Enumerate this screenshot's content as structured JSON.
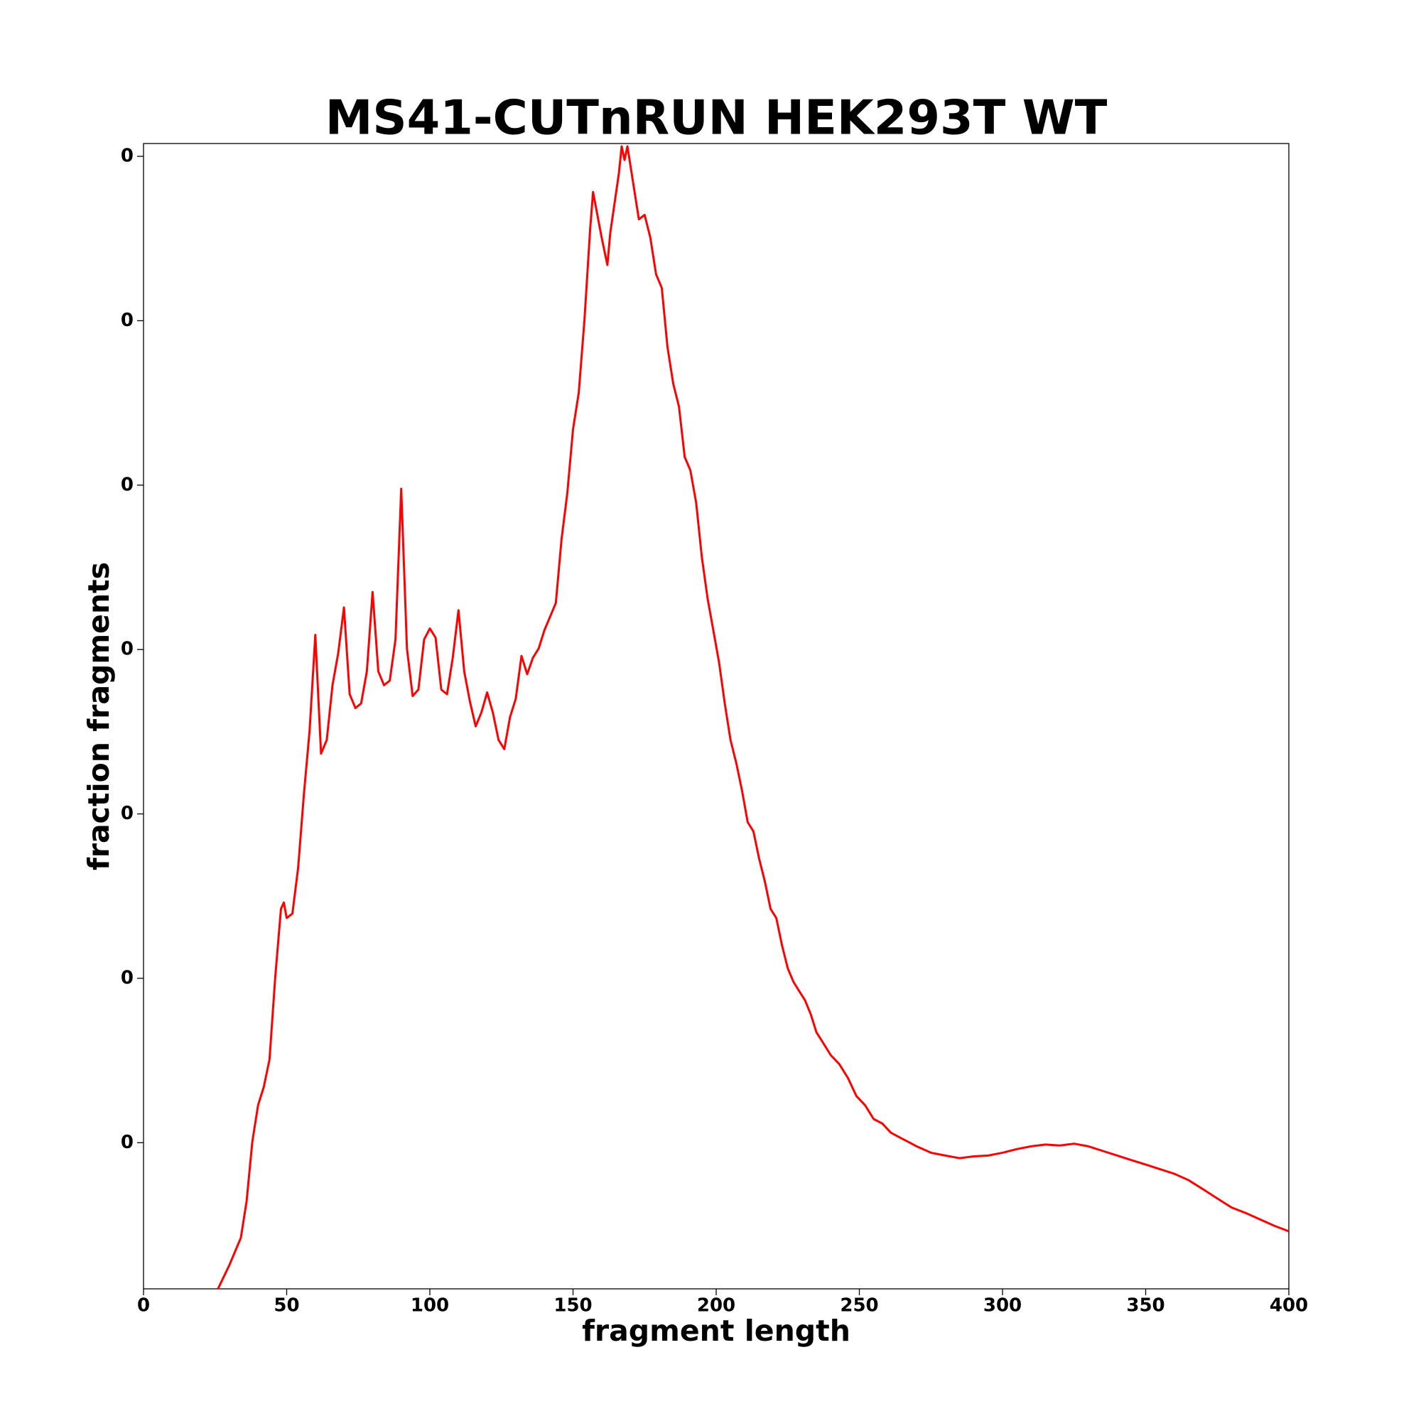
{
  "chart_data": {
    "type": "line",
    "title": "MS41-CUTnRUN HEK293T WT",
    "xlabel": "fragment length",
    "ylabel": "fraction fragments",
    "color": "#ff0000",
    "x": [
      26,
      30,
      34,
      36,
      38,
      40,
      42,
      44,
      46,
      48,
      49,
      50,
      52,
      54,
      56,
      58,
      60,
      62,
      64,
      66,
      68,
      70,
      72,
      74,
      76,
      78,
      80,
      82,
      84,
      86,
      88,
      90,
      92,
      94,
      96,
      98,
      100,
      102,
      104,
      106,
      108,
      110,
      112,
      114,
      116,
      118,
      120,
      122,
      124,
      126,
      128,
      130,
      132,
      134,
      136,
      138,
      140,
      142,
      144,
      146,
      148,
      150,
      152,
      154,
      156,
      157,
      160,
      162,
      163,
      166,
      167,
      168,
      169,
      171,
      173,
      175,
      177,
      179,
      181,
      183,
      185,
      187,
      189,
      191,
      193,
      195,
      197,
      199,
      201,
      203,
      205,
      207,
      209,
      211,
      213,
      215,
      217,
      219,
      221,
      223,
      225,
      227,
      229,
      231,
      233,
      235,
      237,
      240,
      243,
      246,
      249,
      252,
      255,
      258,
      261,
      264,
      267,
      270,
      275,
      280,
      285,
      290,
      295,
      300,
      305,
      310,
      315,
      320,
      325,
      330,
      335,
      340,
      345,
      350,
      355,
      360,
      365,
      370,
      375,
      380,
      385,
      390,
      395,
      400
    ],
    "values": [
      0.000111,
      0.000256,
      0.000422,
      0.000644,
      0.001006,
      0.001228,
      0.001339,
      0.001506,
      0.002006,
      0.002422,
      0.002461,
      0.002367,
      0.002394,
      0.002672,
      0.003117,
      0.003506,
      0.004089,
      0.003367,
      0.00345,
      0.003783,
      0.003978,
      0.004256,
      0.003728,
      0.003644,
      0.003672,
      0.003867,
      0.00435,
      0.003867,
      0.003783,
      0.003811,
      0.004061,
      0.004978,
      0.004006,
      0.003717,
      0.003756,
      0.004061,
      0.004128,
      0.004072,
      0.003756,
      0.003728,
      0.00395,
      0.004239,
      0.003867,
      0.003683,
      0.003533,
      0.003617,
      0.003739,
      0.003617,
      0.00345,
      0.003394,
      0.003589,
      0.0037,
      0.003961,
      0.00385,
      0.00395,
      0.004006,
      0.004117,
      0.0042,
      0.004283,
      0.004672,
      0.00495,
      0.005339,
      0.005561,
      0.006006,
      0.006561,
      0.006783,
      0.006506,
      0.006339,
      0.006533,
      0.006894,
      0.007061,
      0.006978,
      0.007061,
      0.006839,
      0.006617,
      0.006644,
      0.006506,
      0.006283,
      0.0062,
      0.005839,
      0.005617,
      0.005478,
      0.005172,
      0.005089,
      0.004894,
      0.004561,
      0.004311,
      0.004117,
      0.003922,
      0.003672,
      0.00345,
      0.003311,
      0.003144,
      0.00295,
      0.002894,
      0.002728,
      0.002589,
      0.002422,
      0.002367,
      0.0022,
      0.002061,
      0.001978,
      0.001922,
      0.001867,
      0.001783,
      0.001672,
      0.001617,
      0.001533,
      0.001478,
      0.001394,
      0.001283,
      0.001228,
      0.001144,
      0.001117,
      0.001061,
      0.001033,
      0.001006,
      0.000978,
      0.000939,
      0.000922,
      0.000906,
      0.000917,
      0.000922,
      0.000939,
      0.000961,
      0.000978,
      0.000989,
      0.000983,
      0.000994,
      0.000978,
      0.00095,
      0.000922,
      0.000894,
      0.000867,
      0.000839,
      0.000811,
      0.000772,
      0.000717,
      0.000661,
      0.000606,
      0.000572,
      0.000533,
      0.000494,
      0.000461
    ],
    "xlim": [
      0,
      400
    ],
    "xticks": [
      0,
      50,
      100,
      150,
      200,
      250,
      300,
      350,
      400
    ],
    "ylim": [
      0.000111,
      0.007078
    ],
    "yticks": [
      {
        "value": 0.001,
        "label": "0"
      },
      {
        "value": 0.002,
        "label": "0"
      },
      {
        "value": 0.003,
        "label": "0"
      },
      {
        "value": 0.004,
        "label": "0"
      },
      {
        "value": 0.005,
        "label": "0"
      },
      {
        "value": 0.006,
        "label": "0"
      },
      {
        "value": 0.007,
        "label": "0"
      }
    ]
  }
}
